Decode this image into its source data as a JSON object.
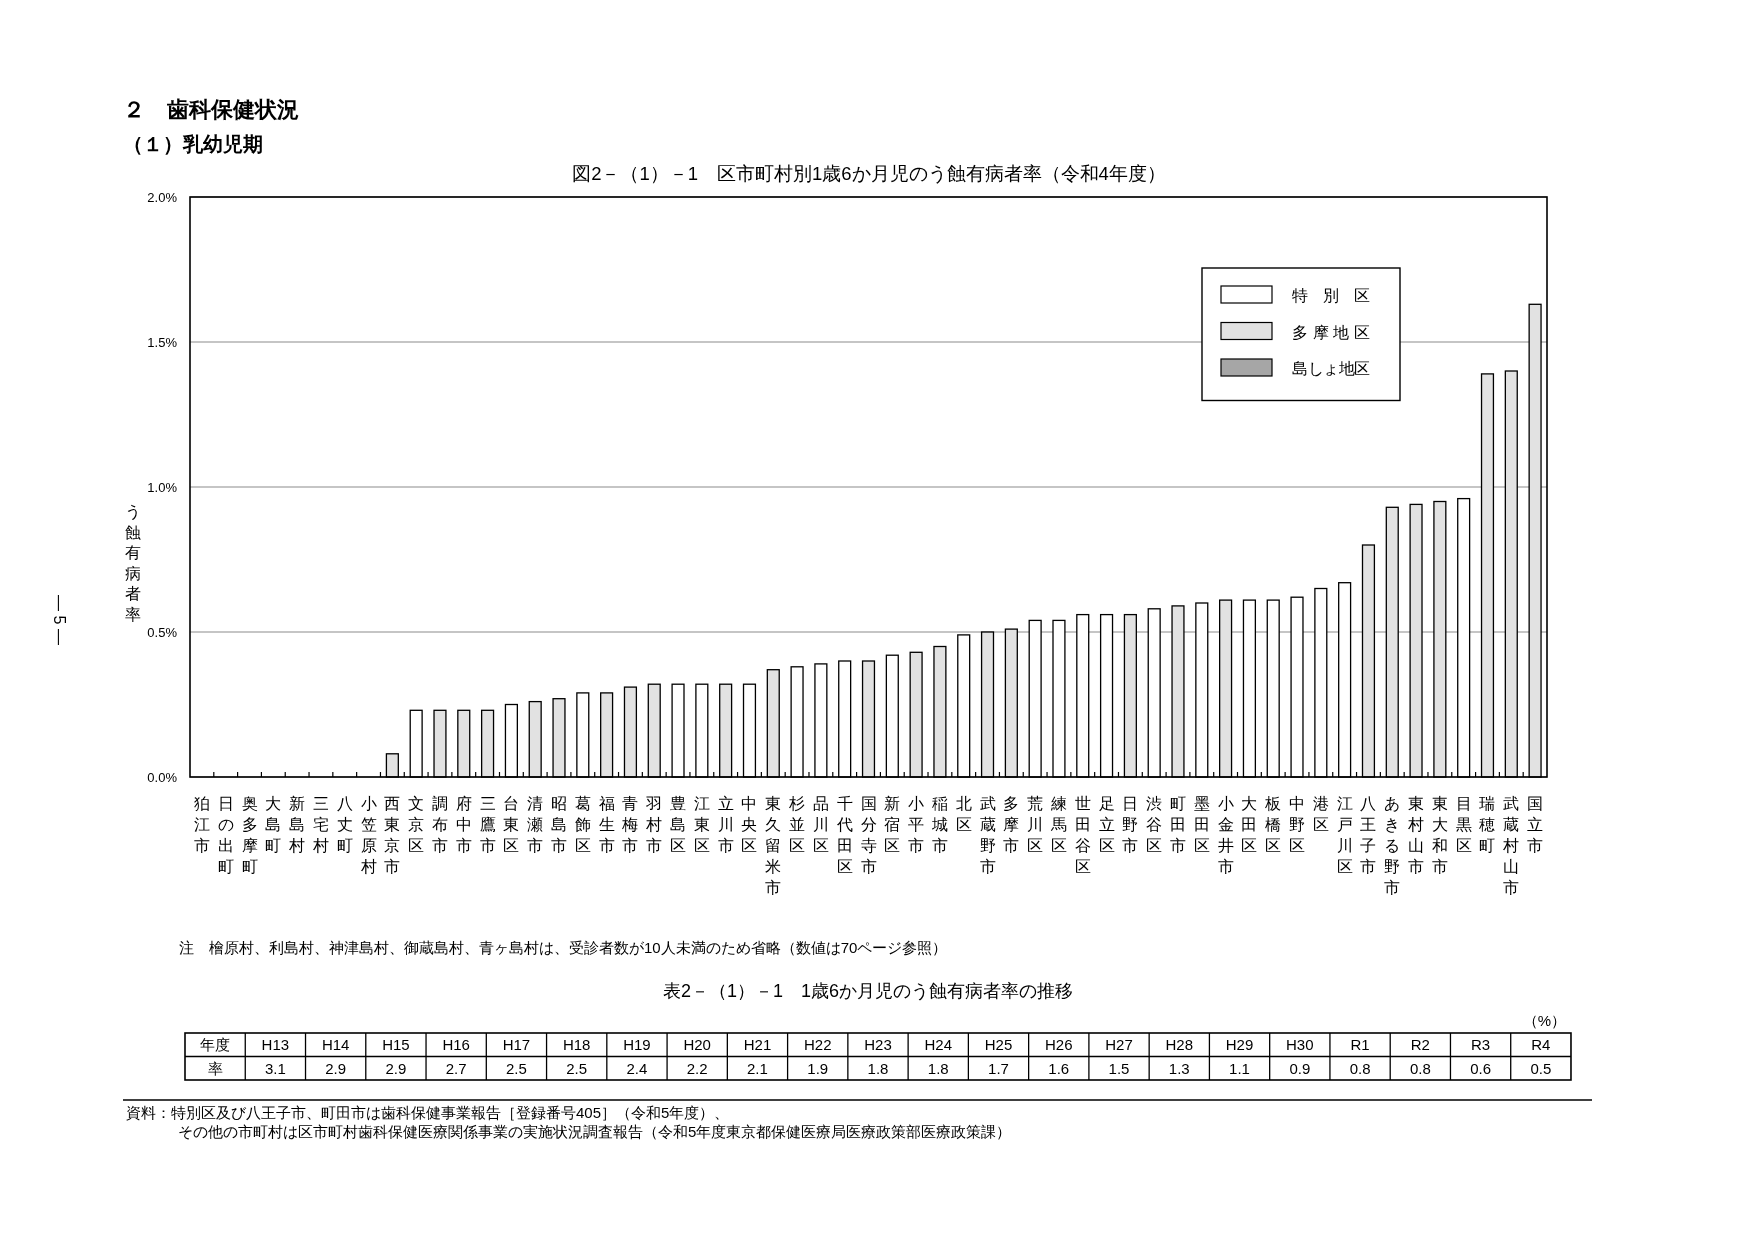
{
  "chart_data": [
    {
      "type": "bar",
      "title": "図2－（1）－1　区市町村別1歳6か月児のう蝕有病者率（令和4年度）",
      "ylabel": "う蝕有病者率",
      "categories": [
        "狛江市",
        "日の出町",
        "奥多摩町",
        "大島町",
        "新島村",
        "三宅村",
        "八丈町",
        "小笠原村",
        "西東京市",
        "文京区",
        "調布市",
        "府中市",
        "三鷹市",
        "台東区",
        "清瀬市",
        "昭島市",
        "葛飾区",
        "福生市",
        "青梅市",
        "羽村市",
        "豊島区",
        "江東区",
        "立川市",
        "中央区",
        "東久留米市",
        "杉並区",
        "品川区",
        "千代田区",
        "国分寺市",
        "新宿区",
        "小平市",
        "稲城市",
        "北区",
        "武蔵野市",
        "多摩市",
        "荒川区",
        "練馬区",
        "世田谷区",
        "足立区",
        "日野市",
        "渋谷区",
        "町田市",
        "墨田区",
        "小金井市",
        "大田区",
        "板橋区",
        "中野区",
        "港区",
        "江戸川区",
        "八王子市",
        "あきる野市",
        "東村山市",
        "東大和市",
        "目黒区",
        "瑞穂町",
        "武蔵村山市",
        "国立市"
      ],
      "series": [
        {
          "name": "特別区",
          "color": "#ffffff",
          "values": [
            null,
            null,
            null,
            null,
            null,
            null,
            null,
            null,
            null,
            0.23,
            null,
            null,
            null,
            0.25,
            null,
            null,
            0.29,
            null,
            null,
            null,
            0.32,
            0.32,
            null,
            0.32,
            null,
            0.38,
            0.39,
            0.4,
            null,
            0.42,
            null,
            null,
            0.49,
            null,
            null,
            0.54,
            0.54,
            0.56,
            0.56,
            null,
            0.58,
            null,
            0.6,
            null,
            0.61,
            0.61,
            0.62,
            0.65,
            0.67,
            null,
            null,
            null,
            null,
            0.96,
            null,
            null,
            null
          ]
        },
        {
          "name": "多摩地区",
          "color": "#e2e2e2",
          "values": [
            0,
            0,
            0,
            null,
            null,
            null,
            null,
            null,
            0.08,
            null,
            0.23,
            0.23,
            0.23,
            null,
            0.26,
            0.27,
            null,
            0.29,
            0.31,
            0.32,
            null,
            null,
            0.32,
            null,
            0.37,
            null,
            null,
            null,
            0.4,
            null,
            0.43,
            0.45,
            null,
            0.5,
            0.51,
            null,
            null,
            null,
            null,
            0.56,
            null,
            0.59,
            null,
            0.61,
            null,
            null,
            null,
            null,
            null,
            0.8,
            0.93,
            0.94,
            0.95,
            null,
            1.39,
            1.4,
            1.63
          ]
        },
        {
          "name": "島しょ地区",
          "color": "#a6a6a6",
          "values": [
            null,
            null,
            null,
            0,
            0,
            0,
            0,
            0,
            null,
            null,
            null,
            null,
            null,
            null,
            null,
            null,
            null,
            null,
            null,
            null,
            null,
            null,
            null,
            null,
            null,
            null,
            null,
            null,
            null,
            null,
            null,
            null,
            null,
            null,
            null,
            null,
            null,
            null,
            null,
            null,
            null,
            null,
            null,
            null,
            null,
            null,
            null,
            null,
            null,
            null,
            null,
            null,
            null,
            null,
            null,
            null,
            null
          ]
        }
      ],
      "stacked": true,
      "ylim": [
        0,
        2.0
      ],
      "yticks": [
        {
          "value": 0,
          "label": "0.0%"
        },
        {
          "value": 0.5,
          "label": "0.5%"
        },
        {
          "value": 1.0,
          "label": "1.0%"
        },
        {
          "value": 1.5,
          "label": "1.5%"
        },
        {
          "value": 2.0,
          "label": "2.0%"
        }
      ],
      "grid": "y",
      "legend": "top right",
      "annotations": [
        "２　歯科保健状況",
        "（１）乳幼児期",
        "注　檜原村、利島村、神津島村、御蔵島村、青ヶ島村は、受診者数が10人未満のため省略（数値は70ページ参照）",
        "— 5 —"
      ]
    },
    {
      "type": "other",
      "title": "表2－（1）－1　1歳6か月児のう蝕有病者率の推移",
      "xlabel": "年度",
      "ylabel": "率",
      "categories": [
        "H13",
        "H14",
        "H15",
        "H16",
        "H17",
        "H18",
        "H19",
        "H20",
        "H21",
        "H22",
        "H23",
        "H24",
        "H25",
        "H26",
        "H27",
        "H28",
        "H29",
        "H30",
        "R1",
        "R2",
        "R3",
        "R4"
      ],
      "values": [
        3.1,
        2.9,
        2.9,
        2.7,
        2.5,
        2.5,
        2.4,
        2.2,
        2.1,
        1.9,
        1.8,
        1.8,
        1.7,
        1.6,
        1.5,
        1.3,
        1.1,
        0.9,
        0.8,
        0.8,
        0.6,
        0.5
      ],
      "data_labels": true,
      "annotations": [
        "（%）",
        "資料：特別区及び八王子市、町田市は歯科保健事業報告［登録番号405］（令和5年度）、",
        "その他の市町村は区市町村歯科保健医療関係事業の実施状況調査報告（令和5年度東京都保健医療局医療政策部医療政策課）"
      ]
    }
  ]
}
